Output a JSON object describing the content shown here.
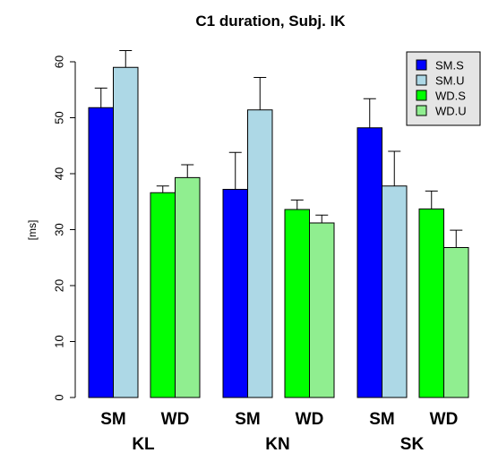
{
  "chart_data": {
    "type": "bar",
    "title": "C1 duration, Subj. IK",
    "ylabel": "[ms]",
    "xlabel": "",
    "ylim": [
      0,
      64
    ],
    "yticks": [
      0,
      10,
      20,
      30,
      40,
      50,
      60
    ],
    "grid": false,
    "legend_placement": "top-right",
    "groups": [
      {
        "label": "KL",
        "subgroups": [
          {
            "label": "SM",
            "bars": [
              {
                "series": "SM.S",
                "value": 51.8,
                "error": 3.5
              },
              {
                "series": "SM.U",
                "value": 59.0,
                "error": 3.0
              }
            ]
          },
          {
            "label": "WD",
            "bars": [
              {
                "series": "WD.S",
                "value": 36.6,
                "error": 1.2
              },
              {
                "series": "WD.U",
                "value": 39.3,
                "error": 2.3
              }
            ]
          }
        ]
      },
      {
        "label": "KN",
        "subgroups": [
          {
            "label": "SM",
            "bars": [
              {
                "series": "SM.S",
                "value": 37.2,
                "error": 6.6
              },
              {
                "series": "SM.U",
                "value": 51.4,
                "error": 5.8
              }
            ]
          },
          {
            "label": "WD",
            "bars": [
              {
                "series": "WD.S",
                "value": 33.6,
                "error": 1.7
              },
              {
                "series": "WD.U",
                "value": 31.2,
                "error": 1.4
              }
            ]
          }
        ]
      },
      {
        "label": "SK",
        "subgroups": [
          {
            "label": "SM",
            "bars": [
              {
                "series": "SM.S",
                "value": 48.2,
                "error": 5.2
              },
              {
                "series": "SM.U",
                "value": 37.8,
                "error": 6.2
              }
            ]
          },
          {
            "label": "WD",
            "bars": [
              {
                "series": "WD.S",
                "value": 33.7,
                "error": 3.2
              },
              {
                "series": "WD.U",
                "value": 26.8,
                "error": 3.1
              }
            ]
          }
        ]
      }
    ],
    "series": [
      {
        "name": "SM.S",
        "color": "#0000ff"
      },
      {
        "name": "SM.U",
        "color": "#add8e6"
      },
      {
        "name": "WD.S",
        "color": "#00ff00"
      },
      {
        "name": "WD.U",
        "color": "#90ee90"
      }
    ],
    "legend_background": "#e5e5e5"
  }
}
